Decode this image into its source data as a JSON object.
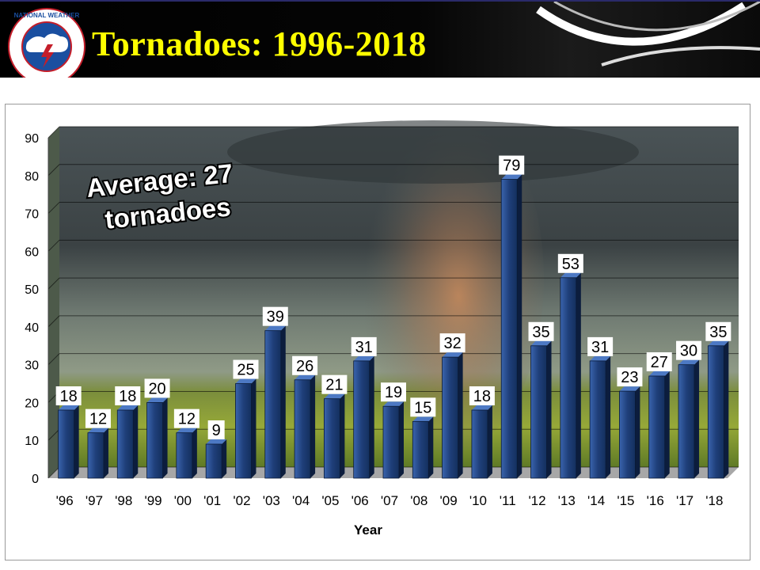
{
  "banner": {
    "title": "Tornadoes: 1996-2018",
    "logo_ring_text": "NATIONAL WEATHER SERVICE"
  },
  "colors": {
    "banner_bg": "#000000",
    "title": "#ffff00",
    "bar_front": "#1f3f7a",
    "bar_highlight": "#3a64ad",
    "bar_side": "#0c1d3d",
    "label_box": "#ffffff"
  },
  "chart_data": {
    "type": "bar",
    "title": "",
    "xlabel": "Year",
    "ylabel": "",
    "ylim": [
      0,
      90
    ],
    "yticks": [
      0,
      10,
      20,
      30,
      40,
      50,
      60,
      70,
      80,
      90
    ],
    "grid": true,
    "categories": [
      "'96",
      "'97",
      "'98",
      "'99",
      "'00",
      "'01",
      "'02",
      "'03",
      "'04",
      "'05",
      "'06",
      "'07",
      "'08",
      "'09",
      "'10",
      "'11",
      "'12",
      "'13",
      "'14",
      "'15",
      "'16",
      "'17",
      "'18"
    ],
    "values": [
      18,
      12,
      18,
      20,
      12,
      9,
      25,
      39,
      26,
      21,
      31,
      19,
      15,
      32,
      18,
      79,
      35,
      53,
      31,
      23,
      27,
      30,
      35
    ],
    "annotation": [
      "Average: 27",
      "tornadoes"
    ],
    "background": "tornado photograph"
  }
}
